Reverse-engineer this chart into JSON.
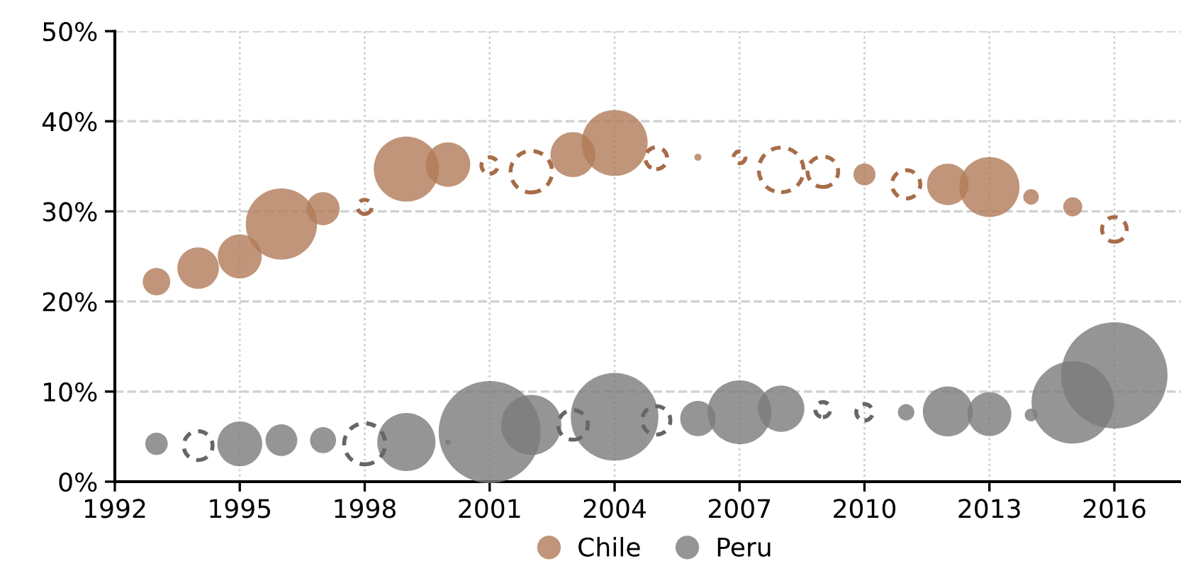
{
  "chart_data": {
    "type": "bubble",
    "x": [
      1993,
      1994,
      1995,
      1996,
      1997,
      1998,
      1999,
      2000,
      2001,
      2002,
      2003,
      2004,
      2005,
      2006,
      2007,
      2008,
      2009,
      2010,
      2011,
      2012,
      2013,
      2014,
      2015,
      2016
    ],
    "series": [
      {
        "name": "Chile",
        "color": "#b07a58",
        "values": [
          22.2,
          23.7,
          25.0,
          28.6,
          30.3,
          null,
          34.7,
          35.2,
          null,
          null,
          36.3,
          37.6,
          null,
          36.0,
          null,
          null,
          null,
          34.1,
          null,
          33.0,
          32.7,
          31.6,
          30.5,
          null
        ],
        "sizes": [
          0.067,
          0.153,
          0.171,
          0.45,
          0.097,
          null,
          0.376,
          0.175,
          null,
          null,
          0.178,
          0.386,
          null,
          0.0044,
          null,
          null,
          null,
          0.043,
          null,
          0.153,
          0.32,
          0.0215,
          0.032,
          null
        ]
      },
      {
        "name": "Peru",
        "color": "#7a7a7a",
        "values": [
          4.2,
          null,
          4.2,
          4.6,
          4.6,
          null,
          4.4,
          4.4,
          5.5,
          6.3,
          null,
          7.2,
          null,
          7.0,
          7.7,
          8.1,
          null,
          null,
          7.7,
          7.8,
          7.5,
          7.4,
          8.8,
          11.8
        ],
        "sizes": [
          0.045,
          null,
          0.178,
          0.089,
          0.06,
          null,
          0.3,
          0.003,
          0.92,
          0.32,
          null,
          0.68,
          null,
          0.11,
          0.36,
          0.19,
          null,
          null,
          0.024,
          0.22,
          0.17,
          0.0144,
          0.6,
          1
        ]
      },
      {
        "color": "#a86c48",
        "line_style": "dashed",
        "values": [
          null,
          null,
          null,
          null,
          null,
          30.5,
          null,
          null,
          35.1,
          34.4,
          null,
          null,
          35.9,
          null,
          36.0,
          34.6,
          34.4,
          null,
          33.0,
          null,
          null,
          null,
          null,
          28.0
        ],
        "sizes": [
          null,
          null,
          null,
          null,
          null,
          0.018,
          null,
          null,
          0.024,
          0.153,
          null,
          null,
          0.042,
          null,
          0.0125,
          0.178,
          0.083,
          null,
          0.071,
          null,
          null,
          null,
          null,
          0.054
        ]
      },
      {
        "color": "#666666",
        "line_style": "dashed",
        "values": [
          null,
          4.0,
          null,
          null,
          null,
          4.2,
          null,
          null,
          null,
          null,
          6.3,
          null,
          6.8,
          null,
          null,
          null,
          8.0,
          7.7,
          null,
          null,
          null,
          null,
          null,
          null
        ],
        "sizes": [
          null,
          0.074,
          null,
          null,
          null,
          0.15,
          null,
          null,
          null,
          null,
          0.078,
          null,
          0.071,
          null,
          null,
          null,
          0.02,
          0.024,
          null,
          null,
          null,
          null,
          null,
          null
        ]
      }
    ],
    "xlim": [
      1992,
      2017.6
    ],
    "xticks": [
      1992,
      1995,
      1998,
      2001,
      2004,
      2007,
      2010,
      2013,
      2016
    ],
    "ylim": [
      0,
      50
    ],
    "yticks": [
      {
        "value": 0,
        "label": "0%"
      },
      {
        "value": 10,
        "label": "10%"
      },
      {
        "value": 20,
        "label": "20%"
      },
      {
        "value": 30,
        "label": "30%"
      },
      {
        "value": 40,
        "label": "40%"
      },
      {
        "value": 50,
        "label": "50%"
      }
    ],
    "grid": true,
    "legend": "bottom",
    "marker": "circle"
  }
}
